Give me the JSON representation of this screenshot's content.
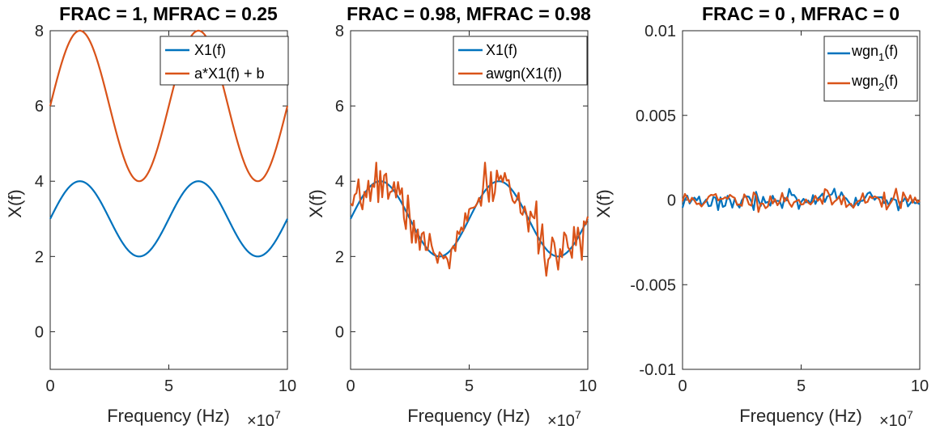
{
  "colors": {
    "series1": "#0072BD",
    "series2": "#D95319",
    "axis": "#262626",
    "legend_box": "#262626"
  },
  "chart_data": [
    {
      "type": "line",
      "title": "FRAC = 1, MFRAC = 0.25",
      "xlabel": "Frequency (Hz)",
      "x_exponent": "×10",
      "x_exponent_power": "7",
      "ylabel": "X(f)",
      "xlim": [
        0,
        10
      ],
      "ylim": [
        -1,
        8
      ],
      "xticks": [
        0,
        5,
        10
      ],
      "xtick_labels": [
        "0",
        "5",
        "10"
      ],
      "yticks": [
        0,
        2,
        4,
        6,
        8
      ],
      "ytick_labels": [
        "0",
        "2",
        "4",
        "6",
        "8"
      ],
      "legend_position": "top-right",
      "series": [
        {
          "name": "X1(f)",
          "legend_label": "X1(f)",
          "kind": "sine",
          "mean": 3,
          "amp": 1,
          "period": 5,
          "phase": 0,
          "x_range": [
            0,
            10
          ]
        },
        {
          "name": "a*X1(f) + b",
          "legend_label": "a*X1(f) + b",
          "kind": "sine",
          "mean": 6,
          "amp": 2,
          "period": 5,
          "phase": 0,
          "x_range": [
            0,
            10
          ]
        }
      ]
    },
    {
      "type": "line",
      "title": "FRAC = 0.98, MFRAC = 0.98",
      "xlabel": "Frequency (Hz)",
      "x_exponent": "×10",
      "x_exponent_power": "7",
      "ylabel": "X(f)",
      "xlim": [
        0,
        10
      ],
      "ylim": [
        -1,
        8
      ],
      "xticks": [
        0,
        5,
        10
      ],
      "xtick_labels": [
        "0",
        "5",
        "10"
      ],
      "yticks": [
        0,
        2,
        4,
        6,
        8
      ],
      "ytick_labels": [
        "0",
        "2",
        "4",
        "6",
        "8"
      ],
      "legend_position": "top-right",
      "series": [
        {
          "name": "X1(f)",
          "legend_label": "X1(f)",
          "kind": "sine",
          "mean": 3,
          "amp": 1,
          "period": 5,
          "phase": 0,
          "x_range": [
            0,
            10
          ]
        },
        {
          "name": "awgn(X1(f))",
          "legend_label": "awgn(X1(f))",
          "kind": "noisy",
          "mean": 3,
          "amp": 1,
          "period": 5,
          "noise_std": 0.28,
          "noise_points": 120,
          "seed": 7,
          "x_range": [
            0,
            10
          ]
        }
      ]
    },
    {
      "type": "line",
      "title": "FRAC = 0 , MFRAC = 0",
      "xlabel": "Frequency (Hz)",
      "x_exponent": "×10",
      "x_exponent_power": "7",
      "ylabel": "X(f)",
      "xlim": [
        0,
        10
      ],
      "ylim": [
        -0.01,
        0.01
      ],
      "xticks": [
        0,
        5,
        10
      ],
      "xtick_labels": [
        "0",
        "5",
        "10"
      ],
      "yticks": [
        -0.01,
        -0.005,
        0,
        0.005,
        0.01
      ],
      "ytick_labels": [
        "-0.01",
        "-0.005",
        "0",
        "0.005",
        "0.01"
      ],
      "legend_position": "top-right",
      "series": [
        {
          "name": "wgn1(f)",
          "legend_main": "wgn",
          "legend_sub": "1",
          "legend_tail": "(f)",
          "kind": "noise",
          "mean": 0,
          "noise_std": 0.00028,
          "noise_points": 100,
          "seed": 3,
          "x_range": [
            0,
            10
          ]
        },
        {
          "name": "wgn2(f)",
          "legend_main": "wgn",
          "legend_sub": "2",
          "legend_tail": "(f)",
          "kind": "noise",
          "mean": 0,
          "noise_std": 0.00028,
          "noise_points": 100,
          "seed": 11,
          "x_range": [
            0,
            10
          ]
        }
      ]
    }
  ]
}
